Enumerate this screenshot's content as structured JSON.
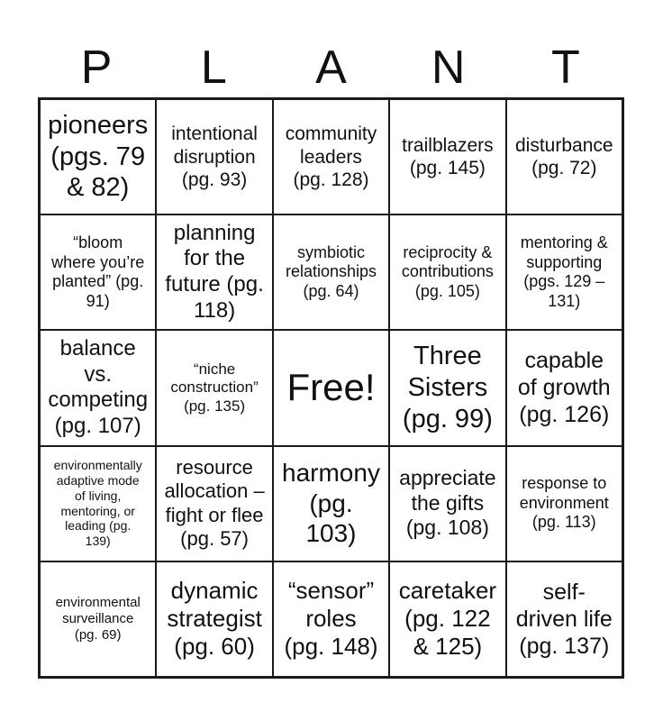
{
  "page": {
    "background_color": "#ffffff",
    "text_color": "#111111",
    "border_color": "#1a1a1a"
  },
  "title": {
    "word": "PLANT",
    "letters": [
      "P",
      "L",
      "A",
      "N",
      "T"
    ]
  },
  "grid": {
    "rows": 5,
    "columns": 5,
    "free_cell_index": 12,
    "cells": [
      {
        "text": "pioneers\n(pgs. 79\n& 82)"
      },
      {
        "text": "intentional\ndisruption\n(pg. 93)"
      },
      {
        "text": "community\nleaders\n(pg. 128)"
      },
      {
        "text": "trailblazers\n(pg. 145)"
      },
      {
        "text": "disturbance\n(pg. 72)"
      },
      {
        "text": "“bloom\nwhere you’re\nplanted” (pg.\n91)"
      },
      {
        "text": "planning\nfor the\nfuture (pg.\n118)"
      },
      {
        "text": "symbiotic\nrelationships\n(pg. 64)"
      },
      {
        "text": "reciprocity &\ncontributions\n(pg. 105)"
      },
      {
        "text": "mentoring &\nsupporting\n(pgs. 129 –\n131)"
      },
      {
        "text": "balance\nvs.\ncompeting\n(pg. 107)"
      },
      {
        "text": "“niche\nconstruction”\n(pg. 135)"
      },
      {
        "text": "Free!"
      },
      {
        "text": "Three\nSisters\n(pg. 99)"
      },
      {
        "text": "capable\nof growth\n(pg. 126)"
      },
      {
        "text": "environmentally\nadaptive mode\nof living,\nmentoring, or\nleading (pg.\n139)"
      },
      {
        "text": "resource\nallocation –\nfight or flee\n(pg. 57)"
      },
      {
        "text": "harmony\n(pg.\n103)"
      },
      {
        "text": "appreciate\nthe gifts\n(pg. 108)"
      },
      {
        "text": "response to\nenvironment\n(pg. 113)"
      },
      {
        "text": "environmental\nsurveillance\n(pg. 69)"
      },
      {
        "text": "dynamic\nstrategist\n(pg. 60)"
      },
      {
        "text": "“sensor”\nroles\n(pg. 148)"
      },
      {
        "text": "caretaker\n(pg. 122\n& 125)"
      },
      {
        "text": "self-\ndriven life\n(pg. 137)"
      }
    ]
  }
}
